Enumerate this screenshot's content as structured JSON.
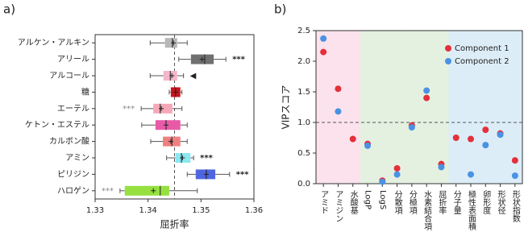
{
  "chart_data": [
    {
      "type": "box",
      "panel_label": "a)",
      "x_label": "屈折率",
      "categories": [
        "アルケン・アルキン",
        "アリール",
        "アルコール",
        "糖",
        "エーテル",
        "ケトン・エステル",
        "カルボン酸",
        "アミン",
        "ピリジン",
        "ハロゲン"
      ],
      "boxes": [
        {
          "whislo": 1.3404,
          "q1": 1.3432,
          "med": 1.3446,
          "q3": 1.3455,
          "whishi": 1.3474,
          "mean": 1.3448,
          "color": "#b8b8b8"
        },
        {
          "whislo": 1.3458,
          "q1": 1.3481,
          "med": 1.3507,
          "q3": 1.3524,
          "whishi": 1.3547,
          "mean": 1.3502,
          "color": "#707070"
        },
        {
          "whislo": 1.3404,
          "q1": 1.3429,
          "med": 1.3442,
          "q3": 1.3455,
          "whishi": 1.3467,
          "mean": 1.3445,
          "color": "#f4b6cc"
        },
        {
          "whislo": 1.344,
          "q1": 1.3443,
          "med": 1.3452,
          "q3": 1.3461,
          "whishi": 1.3464,
          "mean": 1.3452,
          "color": "#c8141e"
        },
        {
          "whislo": 1.3387,
          "q1": 1.341,
          "med": 1.3423,
          "q3": 1.3446,
          "whishi": 1.3464,
          "mean": 1.3425,
          "color": "#f4a8b8"
        },
        {
          "whislo": 1.3388,
          "q1": 1.3414,
          "med": 1.3434,
          "q3": 1.3461,
          "whishi": 1.3474,
          "mean": 1.3434,
          "color": "#e85aa8"
        },
        {
          "whislo": 1.3405,
          "q1": 1.3428,
          "med": 1.3445,
          "q3": 1.3461,
          "whishi": 1.3474,
          "mean": 1.3443,
          "color": "#f08080"
        },
        {
          "whislo": 1.3435,
          "q1": 1.3452,
          "med": 1.3463,
          "q3": 1.348,
          "whishi": 1.3486,
          "mean": 1.3465,
          "color": "#8ae8f2"
        },
        {
          "whislo": 1.3474,
          "q1": 1.349,
          "med": 1.351,
          "q3": 1.3527,
          "whishi": 1.3554,
          "mean": 1.351,
          "color": "#5066e0"
        },
        {
          "whislo": 1.3347,
          "q1": 1.3356,
          "med": 1.3423,
          "q3": 1.344,
          "whishi": 1.3493,
          "mean": 1.341,
          "color": "#96e040"
        }
      ],
      "annotations_right": [
        null,
        "***",
        "◀",
        null,
        null,
        null,
        null,
        "***",
        "***",
        null
      ],
      "annotations_left": [
        null,
        null,
        null,
        null,
        "***",
        null,
        null,
        null,
        null,
        "***"
      ],
      "reference_line": 1.345,
      "xlim": [
        1.33,
        1.36
      ],
      "xticks": [
        {
          "value": 1.33,
          "label": "1.33"
        },
        {
          "value": 1.34,
          "label": "1.34"
        },
        {
          "value": 1.35,
          "label": "1.35"
        },
        {
          "value": 1.36,
          "label": "1.36"
        }
      ]
    },
    {
      "type": "dot",
      "panel_label": "b)",
      "y_label": "VIPスコア",
      "categories": [
        "アミド",
        "アミジン",
        "水酸基",
        "LogP",
        "LogS",
        "分散項",
        "分極項",
        "水素結合項",
        "屈折率",
        "分子量",
        "極性表面積",
        "卵形度",
        "形状径",
        "形状指数"
      ],
      "band_colors": [
        "#fbe2ed",
        "#fbe2ed",
        "#fbe2ed",
        "#e4f1e1",
        "#e4f1e1",
        "#e4f1e1",
        "#e4f1e1",
        "#e4f1e1",
        "#e4f1e1",
        "#dcedf8",
        "#dcedf8",
        "#dcedf8",
        "#dcedf8",
        "#dcedf8"
      ],
      "series": [
        {
          "name": "Component 1",
          "color": "#e3303a",
          "values": [
            2.15,
            1.55,
            0.73,
            0.65,
            0.05,
            0.25,
            0.95,
            1.4,
            0.32,
            0.75,
            0.73,
            0.88,
            0.82,
            0.38
          ]
        },
        {
          "name": "Component 2",
          "color": "#4a92e4",
          "values": [
            2.37,
            1.18,
            null,
            0.62,
            0.03,
            0.15,
            0.92,
            1.52,
            0.27,
            null,
            0.15,
            0.63,
            0.8,
            0.13
          ]
        }
      ],
      "reference_line": 1.0,
      "ylim": [
        0,
        2.5
      ],
      "yticks": [
        {
          "value": 0,
          "label": "0.0"
        },
        {
          "value": 0.5,
          "label": "0.5"
        },
        {
          "value": 1,
          "label": "1.0"
        },
        {
          "value": 1.5,
          "label": "1.5"
        },
        {
          "value": 2,
          "label": "2.0"
        },
        {
          "value": 2.5,
          "label": "2.5"
        }
      ],
      "legend": "upper right"
    }
  ]
}
